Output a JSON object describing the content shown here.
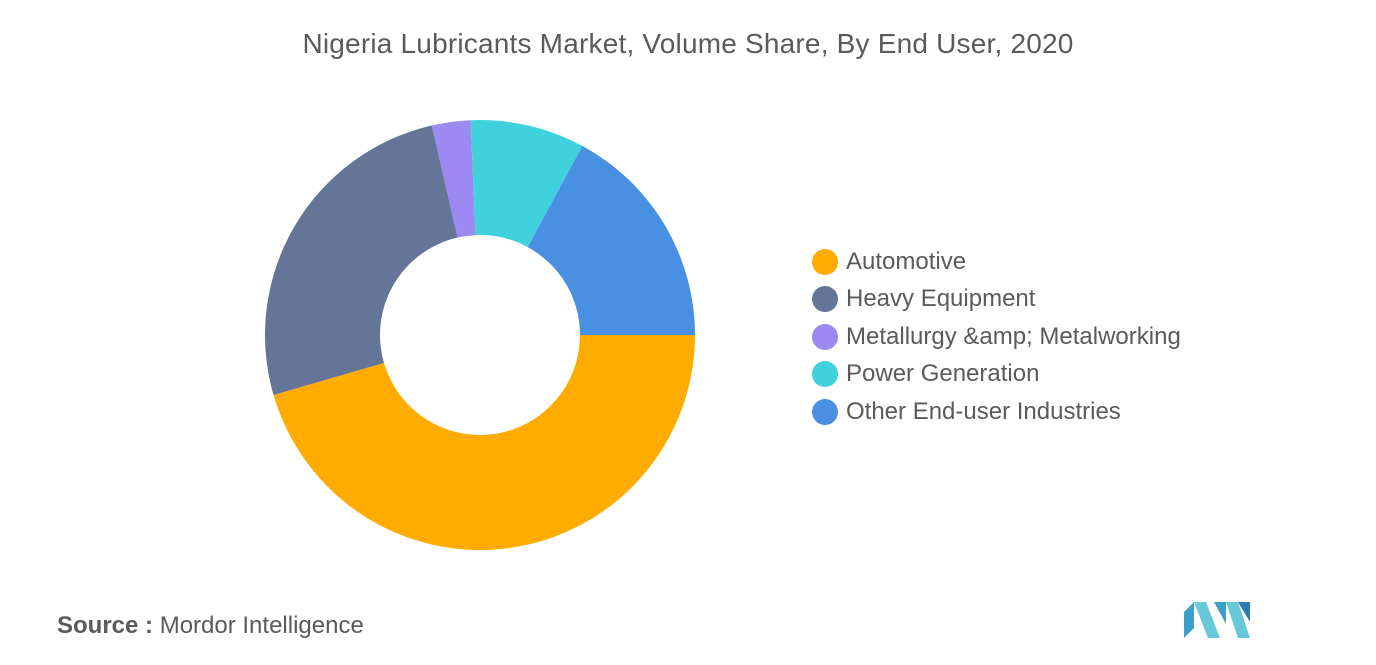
{
  "colors": {
    "automotive": "#FFAB00",
    "heavy_equipment": "#647597",
    "metallurgy": "#9C8AF2",
    "power_generation": "#40D2DC",
    "other": "#4A90E2",
    "text": "#5a5a5a"
  },
  "chart_data": {
    "type": "pie",
    "style": "donut",
    "title": "Nigeria Lubricants Market, Volume Share, By End User, 2020",
    "legend_position": "right",
    "categories": [
      "Automotive",
      "Heavy Equipment",
      "Metallurgy &amp; Metalworking",
      "Power Generation",
      "Other End-user Industries"
    ],
    "values": [
      45.5,
      25.9,
      2.9,
      8.6,
      17.1
    ],
    "colors": [
      "#FFAB00",
      "#647597",
      "#9C8AF2",
      "#40D2DC",
      "#4A90E2"
    ]
  },
  "source": {
    "label": "Source :",
    "value": "Mordor Intelligence"
  },
  "logo": {
    "icon": "mordor-intelligence-logo-icon"
  }
}
